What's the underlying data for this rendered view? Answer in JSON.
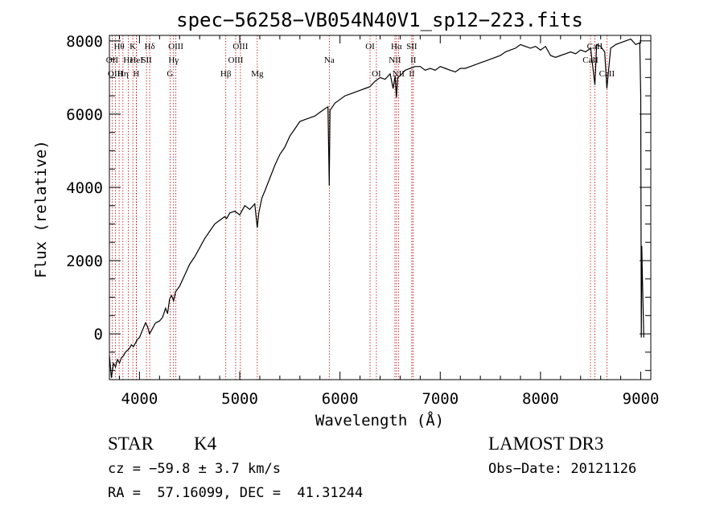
{
  "chart_data": {
    "type": "line",
    "title": "spec−56258−VB054N40V1_sp12−223.fits",
    "xlabel": "Wavelength (Å)",
    "ylabel": "Flux (relative)",
    "xlim": [
      3700,
      9100
    ],
    "ylim": [
      -1250,
      8150
    ],
    "xticks": [
      4000,
      5000,
      6000,
      7000,
      8000,
      9000
    ],
    "yticks": [
      0,
      2000,
      4000,
      6000,
      8000
    ],
    "xtick_labels": [
      "4000",
      "5000",
      "6000",
      "7000",
      "8000",
      "9000"
    ],
    "ytick_labels": [
      "0",
      "2000",
      "4000",
      "6000",
      "8000"
    ],
    "series": [
      {
        "name": "spectrum",
        "x": [
          3700,
          3720,
          3740,
          3760,
          3780,
          3800,
          3820,
          3840,
          3860,
          3880,
          3900,
          3920,
          3940,
          3960,
          3980,
          4000,
          4030,
          4060,
          4080,
          4100,
          4130,
          4160,
          4200,
          4230,
          4260,
          4280,
          4300,
          4320,
          4340,
          4360,
          4400,
          4450,
          4500,
          4550,
          4600,
          4650,
          4700,
          4750,
          4800,
          4850,
          4870,
          4900,
          4950,
          5000,
          5050,
          5100,
          5150,
          5175,
          5190,
          5220,
          5250,
          5300,
          5350,
          5400,
          5450,
          5500,
          5550,
          5600,
          5650,
          5700,
          5750,
          5800,
          5850,
          5880,
          5893,
          5900,
          5950,
          6000,
          6050,
          6100,
          6150,
          6200,
          6250,
          6300,
          6350,
          6400,
          6450,
          6500,
          6530,
          6550,
          6563,
          6575,
          6600,
          6650,
          6700,
          6750,
          6800,
          6850,
          6900,
          6950,
          7000,
          7050,
          7100,
          7150,
          7200,
          7250,
          7300,
          7350,
          7400,
          7450,
          7500,
          7550,
          7600,
          7650,
          7700,
          7750,
          7800,
          7850,
          7900,
          7950,
          8000,
          8050,
          8100,
          8150,
          8200,
          8250,
          8300,
          8350,
          8400,
          8450,
          8500,
          8542,
          8560,
          8600,
          8640,
          8662,
          8700,
          8750,
          8800,
          8850,
          8900,
          8950,
          8990,
          9000,
          9005,
          9010,
          9015,
          9030
        ],
        "values": [
          -600,
          -1200,
          -800,
          -900,
          -700,
          -800,
          -650,
          -600,
          -500,
          -450,
          -400,
          -300,
          -350,
          -250,
          -150,
          -100,
          100,
          300,
          200,
          0,
          150,
          300,
          350,
          450,
          700,
          550,
          950,
          1050,
          900,
          1150,
          1300,
          1600,
          1900,
          2100,
          2350,
          2600,
          2800,
          3000,
          3100,
          3200,
          3150,
          3300,
          3350,
          3250,
          3500,
          3400,
          3550,
          2900,
          3300,
          3700,
          3900,
          4250,
          4600,
          4900,
          5100,
          5400,
          5600,
          5800,
          5850,
          5900,
          5950,
          6050,
          6150,
          6200,
          4050,
          6100,
          6300,
          6400,
          6500,
          6550,
          6600,
          6650,
          6700,
          6750,
          6900,
          7000,
          6950,
          7100,
          6700,
          7050,
          6450,
          7000,
          7050,
          7200,
          7250,
          7300,
          7300,
          7200,
          7250,
          7200,
          7300,
          7250,
          7200,
          7150,
          7250,
          7250,
          7300,
          7350,
          7400,
          7450,
          7500,
          7550,
          7600,
          7700,
          7750,
          7800,
          7900,
          7850,
          7800,
          7850,
          7750,
          7850,
          7600,
          7550,
          7600,
          7650,
          7700,
          7650,
          7750,
          7700,
          7800,
          6800,
          7900,
          7850,
          7700,
          6700,
          7800,
          7900,
          7950,
          8000,
          8050,
          7900,
          7950,
          6500,
          -100,
          2400,
          1700,
          -100
        ]
      }
    ],
    "line_markers": [
      {
        "label": "Hθ",
        "x": 3797,
        "row": 1
      },
      {
        "label": "OII",
        "x": 3727,
        "row": 2
      },
      {
        "label": "OIII",
        "x": 3760,
        "row": 3
      },
      {
        "label": "Hε",
        "x": 3889,
        "row": 2
      },
      {
        "label": "Hη",
        "x": 3835,
        "row": 3
      },
      {
        "label": "K",
        "x": 3934,
        "row": 1
      },
      {
        "label": "HeI",
        "x": 3970,
        "row": 2
      },
      {
        "label": "H",
        "x": 3968,
        "row": 3
      },
      {
        "label": "Hδ",
        "x": 4102,
        "row": 1
      },
      {
        "label": "SII",
        "x": 4070,
        "row": 2
      },
      {
        "label": "OIII",
        "x": 4363,
        "row": 1
      },
      {
        "label": "Hγ",
        "x": 4340,
        "row": 2
      },
      {
        "label": "G",
        "x": 4305,
        "row": 3
      },
      {
        "label": "OIII",
        "x": 5007,
        "row": 1
      },
      {
        "label": "OIII",
        "x": 4959,
        "row": 2
      },
      {
        "label": "Hβ",
        "x": 4861,
        "row": 3
      },
      {
        "label": "Mg",
        "x": 5175,
        "row": 3
      },
      {
        "label": "Na",
        "x": 5893,
        "row": 2
      },
      {
        "label": "OI",
        "x": 6300,
        "row": 1
      },
      {
        "label": "OI",
        "x": 6363,
        "row": 3
      },
      {
        "label": "Hα",
        "x": 6563,
        "row": 1
      },
      {
        "label": "SII",
        "x": 6716,
        "row": 1
      },
      {
        "label": "NII",
        "x": 6548,
        "row": 2
      },
      {
        "label": "II",
        "x": 6731,
        "row": 2
      },
      {
        "label": "NII",
        "x": 6583,
        "row": 3
      },
      {
        "label": "II",
        "x": 6716,
        "row": 3
      },
      {
        "label": "CaII",
        "x": 8542,
        "row": 1
      },
      {
        "label": "CaII",
        "x": 8498,
        "row": 2
      },
      {
        "label": "CaII",
        "x": 8662,
        "row": 3
      }
    ],
    "grid": false,
    "legend": "none"
  },
  "footer": {
    "object_class": "STAR",
    "subclass": "K4",
    "cz": "cz = −59.8 ± 3.7 km/s",
    "coords": "RA =  57.16099, DEC =  41.31244",
    "survey": "LAMOST DR3",
    "obs_date": "Obs−Date: 20121126"
  }
}
